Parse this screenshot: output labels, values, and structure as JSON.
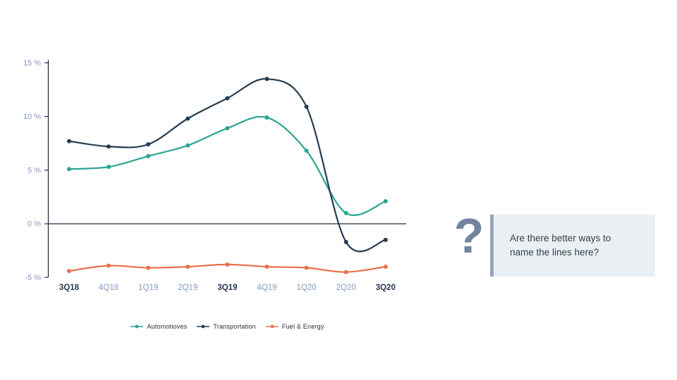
{
  "chart_data": {
    "type": "line",
    "title": "",
    "xlabel": "",
    "ylabel": "",
    "categories": [
      "3Q18",
      "4Q18",
      "1Q19",
      "2Q19",
      "3Q19",
      "4Q19",
      "1Q20",
      "2Q20",
      "3Q20"
    ],
    "emphasized_categories": [
      "3Q18",
      "3Q19",
      "3Q20"
    ],
    "series": [
      {
        "name": "Automotioves",
        "color": "#2aa492",
        "values": [
          5.1,
          5.3,
          6.3,
          7.3,
          8.9,
          9.9,
          6.8,
          1.0,
          2.1
        ]
      },
      {
        "name": "Transportation",
        "color": "#253c51",
        "values": [
          7.7,
          7.2,
          7.4,
          9.8,
          11.7,
          13.5,
          10.9,
          -1.7,
          -1.5
        ]
      },
      {
        "name": "Fuel & Energy",
        "color": "#e96f4d",
        "values": [
          -4.4,
          -3.9,
          -4.1,
          -4.0,
          -3.8,
          -4.0,
          -4.1,
          -4.5,
          -4.0
        ]
      }
    ],
    "y_ticks": [
      {
        "value": 15,
        "label": "15 %"
      },
      {
        "value": 10,
        "label": "10 %"
      },
      {
        "value": 5,
        "label": "5 %"
      },
      {
        "value": 0,
        "label": "0 %"
      },
      {
        "value": -5,
        "label": "-5 %"
      }
    ],
    "ylim": [
      -5,
      15
    ],
    "grid": false,
    "zero_line": true,
    "legend_position": "bottom",
    "curve": "smooth"
  },
  "annotation": {
    "question_mark": "?",
    "callout_text": "Are there better ways to name the lines here?"
  },
  "colors": {
    "axis": "#243244",
    "zero_line": "#1f2d3d",
    "tick_label": "#8497c5",
    "tick_label_emphasis": "#27334f",
    "legend_text": "#1f2a33",
    "question_mark": "#72839f",
    "callout_bg": "#eaeff4",
    "callout_bar": "#97a5bc",
    "callout_text": "#333d47"
  }
}
